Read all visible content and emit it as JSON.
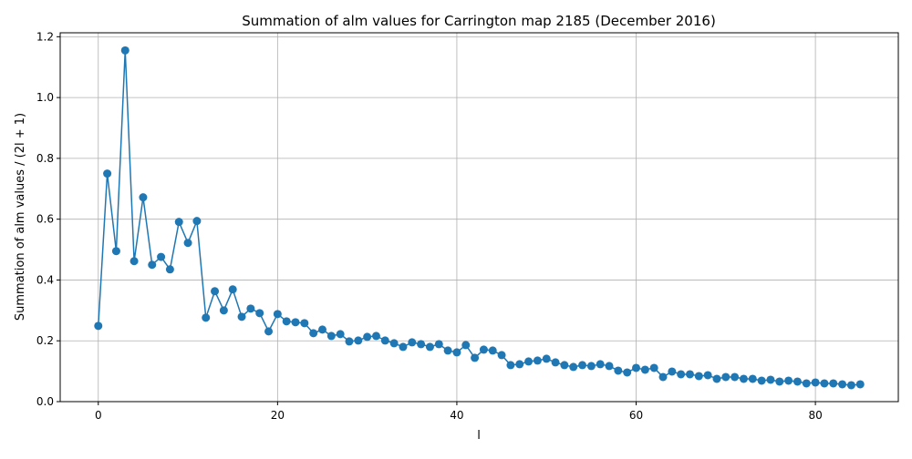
{
  "chart_data": {
    "type": "line",
    "title": "Summation of alm values for Carrington map 2185 (December 2016)",
    "xlabel": "l",
    "ylabel": "Summation of alm values / (2l + 1)",
    "xlim": [
      -4.25,
      89.25
    ],
    "ylim": [
      0,
      1.213
    ],
    "xticks": [
      0,
      20,
      40,
      60,
      80
    ],
    "yticks": [
      0.0,
      0.2,
      0.4,
      0.6,
      0.8,
      1.0,
      1.2
    ],
    "xtick_labels": [
      "0",
      "20",
      "40",
      "60",
      "80"
    ],
    "ytick_labels": [
      "0.0",
      "0.2",
      "0.4",
      "0.6",
      "0.8",
      "1.0",
      "1.2"
    ],
    "grid": true,
    "markers": true,
    "color": "#1f77b4",
    "series": [
      {
        "x": [
          0,
          1,
          2,
          3,
          4,
          5,
          6,
          7,
          8,
          9,
          10,
          11,
          12,
          13,
          14,
          15,
          16,
          17,
          18,
          19,
          20,
          21,
          22,
          23,
          24,
          25,
          26,
          27,
          28,
          29,
          30,
          31,
          32,
          33,
          34,
          35,
          36,
          37,
          38,
          39,
          40,
          41,
          42,
          43,
          44,
          45,
          46,
          47,
          48,
          49,
          50,
          51,
          52,
          53,
          54,
          55,
          56,
          57,
          58,
          59,
          60,
          61,
          62,
          63,
          64,
          65,
          66,
          67,
          68,
          69,
          70,
          71,
          72,
          73,
          74,
          75,
          76,
          77,
          78,
          79,
          80,
          81,
          82,
          83,
          84,
          85
        ],
        "values": [
          0.249,
          0.75,
          0.495,
          1.155,
          0.462,
          0.672,
          0.45,
          0.476,
          0.435,
          0.591,
          0.522,
          0.594,
          0.276,
          0.363,
          0.3,
          0.369,
          0.279,
          0.306,
          0.291,
          0.231,
          0.288,
          0.264,
          0.261,
          0.258,
          0.225,
          0.237,
          0.216,
          0.222,
          0.198,
          0.201,
          0.213,
          0.216,
          0.201,
          0.192,
          0.18,
          0.195,
          0.189,
          0.18,
          0.189,
          0.168,
          0.162,
          0.186,
          0.144,
          0.171,
          0.168,
          0.153,
          0.12,
          0.123,
          0.132,
          0.135,
          0.141,
          0.129,
          0.12,
          0.114,
          0.12,
          0.117,
          0.123,
          0.117,
          0.102,
          0.096,
          0.111,
          0.105,
          0.111,
          0.081,
          0.099,
          0.09,
          0.09,
          0.084,
          0.087,
          0.075,
          0.081,
          0.081,
          0.075,
          0.075,
          0.069,
          0.072,
          0.066,
          0.069,
          0.066,
          0.06,
          0.063,
          0.06,
          0.06,
          0.057,
          0.054,
          0.057
        ]
      }
    ]
  }
}
